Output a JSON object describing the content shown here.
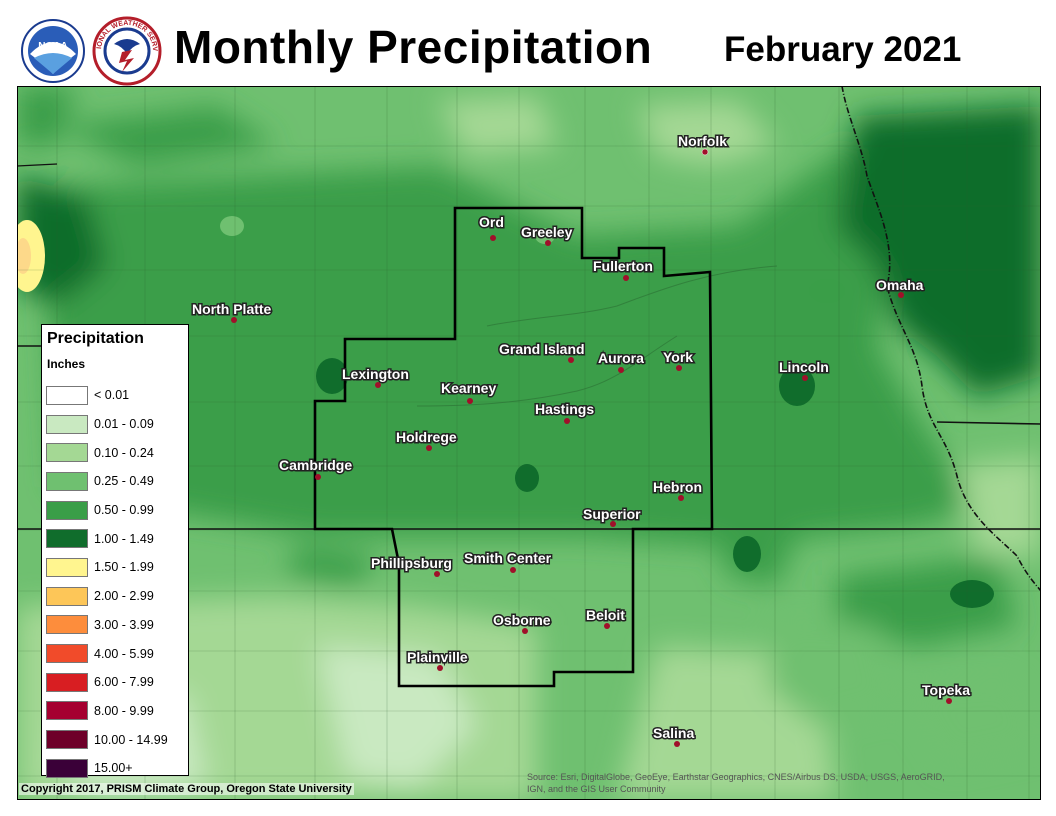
{
  "header": {
    "title": "Monthly Precipitation",
    "date": "February 2021",
    "noaa_logo_text": "NOAA",
    "nws_logo_text": "NATIONAL WEATHER SERVICE"
  },
  "legend": {
    "title": "Precipitation",
    "units": "Inches",
    "items": [
      {
        "label": "< 0.01",
        "color": "#ffffff"
      },
      {
        "label": "0.01 - 0.09",
        "color": "#c9e9c1"
      },
      {
        "label": "0.10 - 0.24",
        "color": "#a4d894"
      },
      {
        "label": "0.25 - 0.49",
        "color": "#6fc070"
      },
      {
        "label": "0.50 - 0.99",
        "color": "#3a9e48"
      },
      {
        "label": "1.00 - 1.49",
        "color": "#106d2c"
      },
      {
        "label": "1.50 - 1.99",
        "color": "#fff58f"
      },
      {
        "label": "2.00 - 2.99",
        "color": "#fdc658"
      },
      {
        "label": "3.00 - 3.99",
        "color": "#fd8d3c"
      },
      {
        "label": "4.00 - 5.99",
        "color": "#f14b2a"
      },
      {
        "label": "6.00 - 7.99",
        "color": "#d81e22"
      },
      {
        "label": "8.00 - 9.99",
        "color": "#a50030"
      },
      {
        "label": "10.00 - 14.99",
        "color": "#6e0029"
      },
      {
        "label": "15.00+",
        "color": "#3a0038"
      }
    ]
  },
  "cities": [
    "Norfolk",
    "Ord",
    "Greeley",
    "Fullerton",
    "Omaha",
    "North Platte",
    "Grand Island",
    "Aurora",
    "York",
    "Lincoln",
    "Lexington",
    "Kearney",
    "Hastings",
    "Holdrege",
    "Cambridge",
    "Hebron",
    "Superior",
    "Phillipsburg",
    "Smith Center",
    "Beloit",
    "Osborne",
    "Plainville",
    "Topeka",
    "Salina"
  ],
  "footer": {
    "copyright": "Copyright 2017, PRISM Climate Group, Oregon State University",
    "source_line1": "Source: Esri, DigitalGlobe, GeoEye, Earthstar Geographics, CNES/Airbus DS, USDA, USGS, AeroGRID,",
    "source_line2": "IGN, and the GIS User Community"
  }
}
